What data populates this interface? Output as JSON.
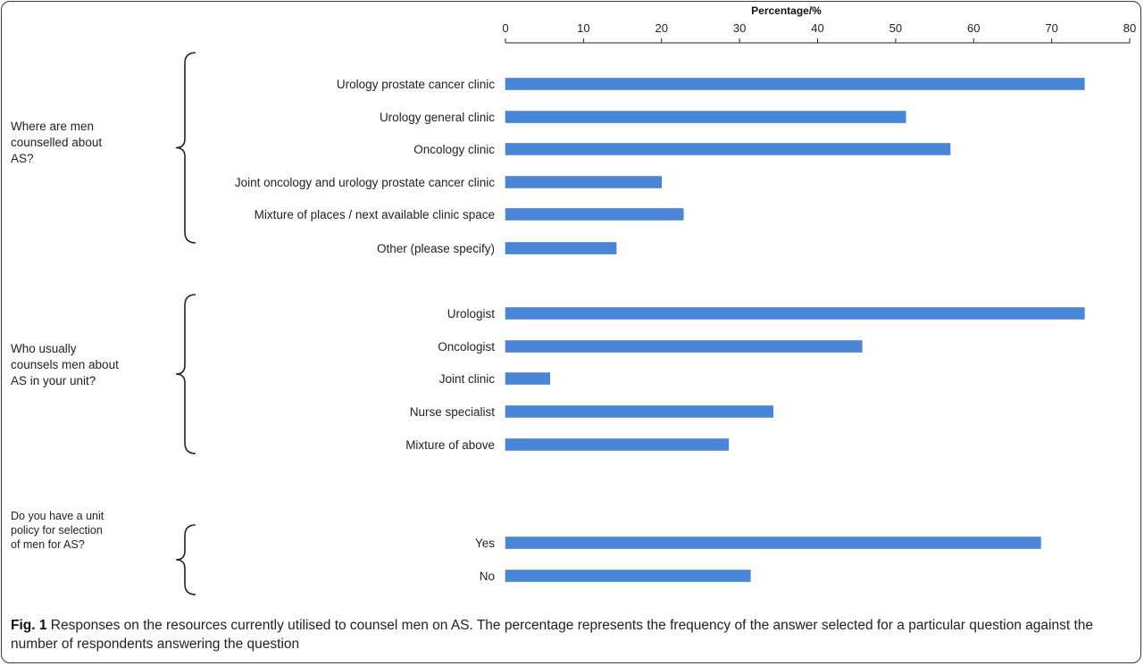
{
  "chart_data": {
    "type": "bar",
    "orientation": "horizontal",
    "title": "Percentage/%",
    "xlim": [
      0,
      80
    ],
    "xticks": [
      0,
      10,
      20,
      30,
      40,
      50,
      60,
      70,
      80
    ],
    "grid": false,
    "bar_color": "#4a86d8",
    "groups": [
      {
        "question": "Where are men counselled about AS?",
        "question_lines": [
          "Where are men",
          "counselled about",
          "AS?"
        ],
        "categories": [
          "Urology prostate cancer clinic",
          "Urology general clinic",
          "Oncology clinic",
          "Joint oncology and urology prostate cancer clinic",
          "Mixture of places / next available clinic space",
          "Other (please specify)"
        ],
        "values": [
          74.2,
          51.3,
          57.0,
          20.0,
          22.8,
          14.2
        ]
      },
      {
        "question": "Who usually counsels men about AS in your unit?",
        "question_lines": [
          "Who usually",
          "counsels men about",
          "AS in your unit?"
        ],
        "categories": [
          "Urologist",
          "Oncologist",
          "Joint clinic",
          "Nurse specialist",
          "Mixture of above"
        ],
        "values": [
          74.2,
          45.7,
          5.7,
          34.3,
          28.6
        ]
      },
      {
        "question": "Do you have a unit policy for selection of men for AS?",
        "question_lines": [
          "Do you have a unit",
          "policy for selection",
          "of men for AS?"
        ],
        "categories": [
          "Yes",
          "No"
        ],
        "values": [
          68.6,
          31.4
        ]
      }
    ]
  },
  "caption": {
    "label": "Fig. 1",
    "text": " Responses on the resources currently utilised to counsel men on AS. The percentage represents the frequency of the answer selected for a particular question against the number of respondents answering the question"
  }
}
